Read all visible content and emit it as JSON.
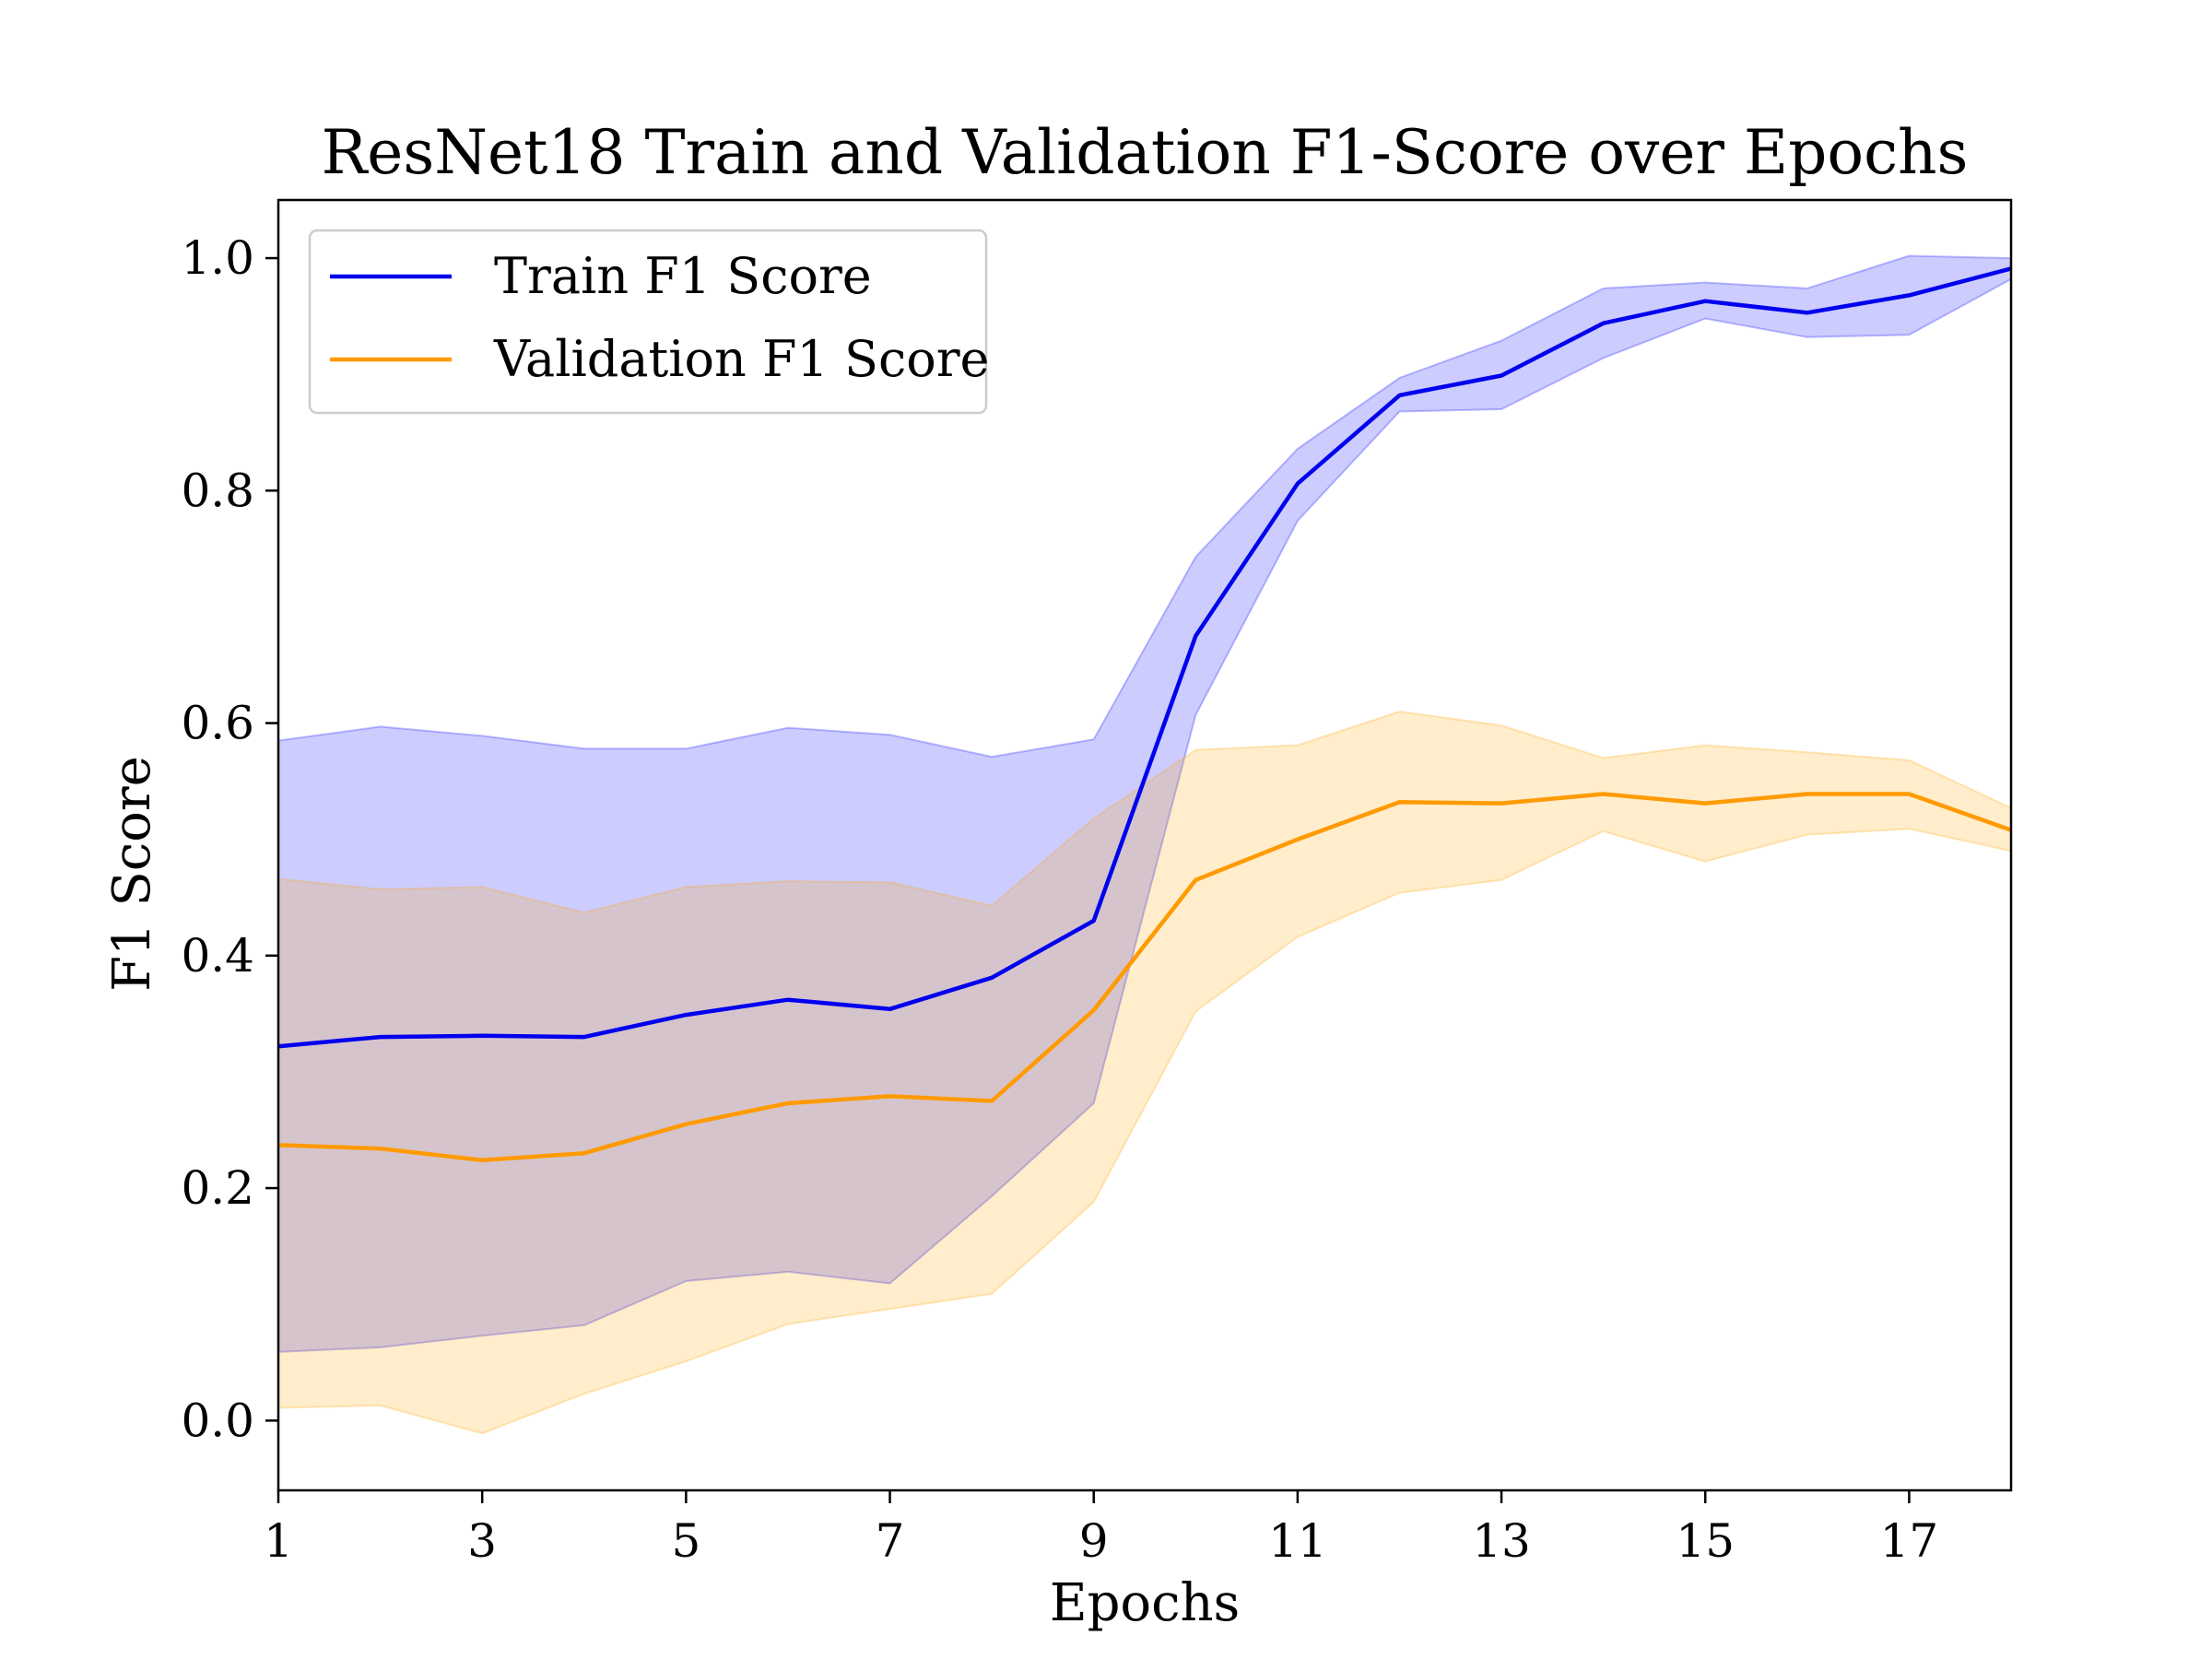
{
  "chart_data": {
    "type": "line",
    "title": "ResNet18 Train and Validation F1-Score over Epochs",
    "xlabel": "Epochs",
    "ylabel": "F1 Score",
    "xlim": [
      1,
      18
    ],
    "ylim": [
      -0.06,
      1.05
    ],
    "xticks": [
      1,
      3,
      5,
      7,
      9,
      11,
      13,
      15,
      17
    ],
    "yticks": [
      0.0,
      0.2,
      0.4,
      0.6,
      0.8,
      1.0
    ],
    "xtick_labels": [
      "1",
      "3",
      "5",
      "7",
      "9",
      "11",
      "13",
      "15",
      "17"
    ],
    "ytick_labels": [
      "0.0",
      "0.2",
      "0.4",
      "0.6",
      "0.8",
      "1.0"
    ],
    "grid": false,
    "legend_position": "top-left",
    "x": [
      1,
      2,
      3,
      4,
      5,
      6,
      7,
      8,
      9,
      10,
      11,
      12,
      13,
      14,
      15,
      16,
      17,
      18
    ],
    "series": [
      {
        "name": "Train F1 Score",
        "color": "#0000ee",
        "band_color": "#0000ff",
        "values": [
          0.322,
          0.33,
          0.331,
          0.33,
          0.349,
          0.362,
          0.354,
          0.381,
          0.43,
          0.675,
          0.806,
          0.882,
          0.899,
          0.944,
          0.963,
          0.953,
          0.968,
          0.991
        ],
        "upper": [
          0.585,
          0.597,
          0.589,
          0.578,
          0.578,
          0.596,
          0.59,
          0.571,
          0.586,
          0.743,
          0.836,
          0.897,
          0.929,
          0.974,
          0.979,
          0.974,
          1.002,
          1.0
        ],
        "lower": [
          0.059,
          0.063,
          0.073,
          0.082,
          0.12,
          0.128,
          0.118,
          0.193,
          0.273,
          0.607,
          0.774,
          0.868,
          0.87,
          0.914,
          0.948,
          0.932,
          0.934,
          0.982
        ]
      },
      {
        "name": "Validation F1 Score",
        "color": "#ff9a00",
        "band_color": "#ffa500",
        "values": [
          0.237,
          0.234,
          0.224,
          0.23,
          0.255,
          0.273,
          0.279,
          0.275,
          0.353,
          0.465,
          0.5,
          0.532,
          0.531,
          0.539,
          0.531,
          0.539,
          0.539,
          0.508
        ],
        "upper": [
          0.466,
          0.457,
          0.459,
          0.437,
          0.459,
          0.464,
          0.463,
          0.443,
          0.518,
          0.577,
          0.581,
          0.61,
          0.598,
          0.57,
          0.581,
          0.575,
          0.568,
          0.527
        ],
        "lower": [
          0.011,
          0.013,
          -0.011,
          0.023,
          0.051,
          0.083,
          0.096,
          0.109,
          0.188,
          0.352,
          0.416,
          0.454,
          0.465,
          0.507,
          0.481,
          0.504,
          0.509,
          0.49
        ]
      }
    ]
  }
}
